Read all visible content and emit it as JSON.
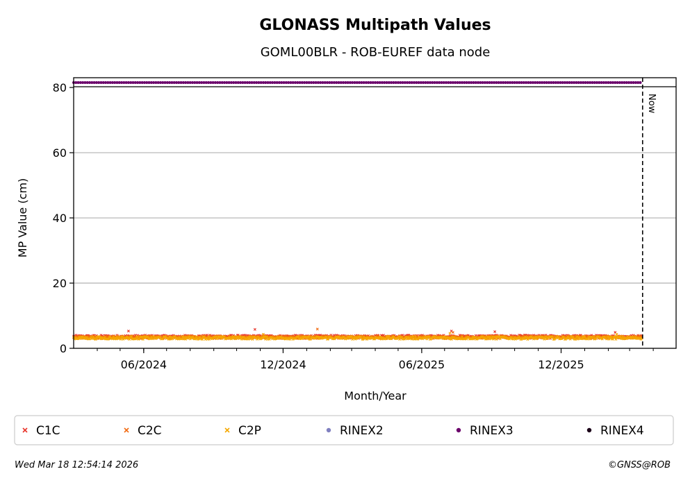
{
  "chart_data": {
    "type": "scatter",
    "title": "GLONASS Multipath Values",
    "subtitle": "GOML00BLR - ROB-EUREF data node",
    "xlabel": "Month/Year",
    "ylabel": "MP Value (cm)",
    "xlim": [
      "2024-03-01",
      "2026-05-01"
    ],
    "ylim": [
      0,
      83
    ],
    "yticks": [
      0,
      20,
      40,
      60,
      80
    ],
    "xticks": [
      {
        "date": "2024-06-01",
        "label": "06/2024"
      },
      {
        "date": "2024-12-01",
        "label": "12/2024"
      },
      {
        "date": "2025-06-01",
        "label": "06/2025"
      },
      {
        "date": "2025-12-01",
        "label": "12/2025"
      }
    ],
    "grid": "y",
    "now_label": "Now",
    "now_date": "2026-03-18",
    "series": [
      {
        "name": "C1C",
        "color": "#e8352b",
        "marker": "x",
        "x_start": "2024-03-01",
        "x_end": "2026-03-17",
        "baseline": 3.6,
        "spikes": [
          {
            "x": "2024-05-12",
            "y": 5.3
          },
          {
            "x": "2024-10-25",
            "y": 5.8
          },
          {
            "x": "2025-07-10",
            "y": 5.3
          },
          {
            "x": "2025-09-05",
            "y": 5.1
          },
          {
            "x": "2026-02-10",
            "y": 4.9
          }
        ]
      },
      {
        "name": "C2C",
        "color": "#f26b12",
        "marker": "x",
        "x_start": "2024-03-01",
        "x_end": "2026-03-17",
        "baseline": 3.4,
        "spikes": [
          {
            "x": "2025-01-15",
            "y": 5.9
          },
          {
            "x": "2025-07-12",
            "y": 4.9
          }
        ]
      },
      {
        "name": "C2P",
        "color": "#f5a800",
        "marker": "x",
        "x_start": "2024-03-01",
        "x_end": "2026-03-17",
        "baseline": 3.2,
        "spikes": [
          {
            "x": "2024-11-05",
            "y": 4.3
          },
          {
            "x": "2025-07-08",
            "y": 4.6
          },
          {
            "x": "2026-02-12",
            "y": 4.3
          }
        ]
      },
      {
        "name": "RINEX2",
        "color": "#8080c0",
        "marker": "o",
        "values": []
      },
      {
        "name": "RINEX3",
        "color": "#6b006b",
        "marker": "o",
        "x_start": "2024-03-01",
        "x_end": "2026-03-17",
        "y": 81.5
      },
      {
        "name": "RINEX4",
        "color": "#1a0018",
        "marker": "o",
        "values": []
      }
    ]
  },
  "legend": {
    "items": [
      {
        "label": "C1C",
        "color": "#e8352b",
        "marker": "x"
      },
      {
        "label": "C2C",
        "color": "#f26b12",
        "marker": "x"
      },
      {
        "label": "C2P",
        "color": "#f5a800",
        "marker": "x"
      },
      {
        "label": "RINEX2",
        "color": "#8080c0",
        "marker": "o"
      },
      {
        "label": "RINEX3",
        "color": "#6b006b",
        "marker": "o"
      },
      {
        "label": "RINEX4",
        "color": "#1a0018",
        "marker": "o"
      }
    ]
  },
  "footer": {
    "timestamp": "Wed Mar 18 12:54:14 2026",
    "credit": "©GNSS@ROB"
  }
}
